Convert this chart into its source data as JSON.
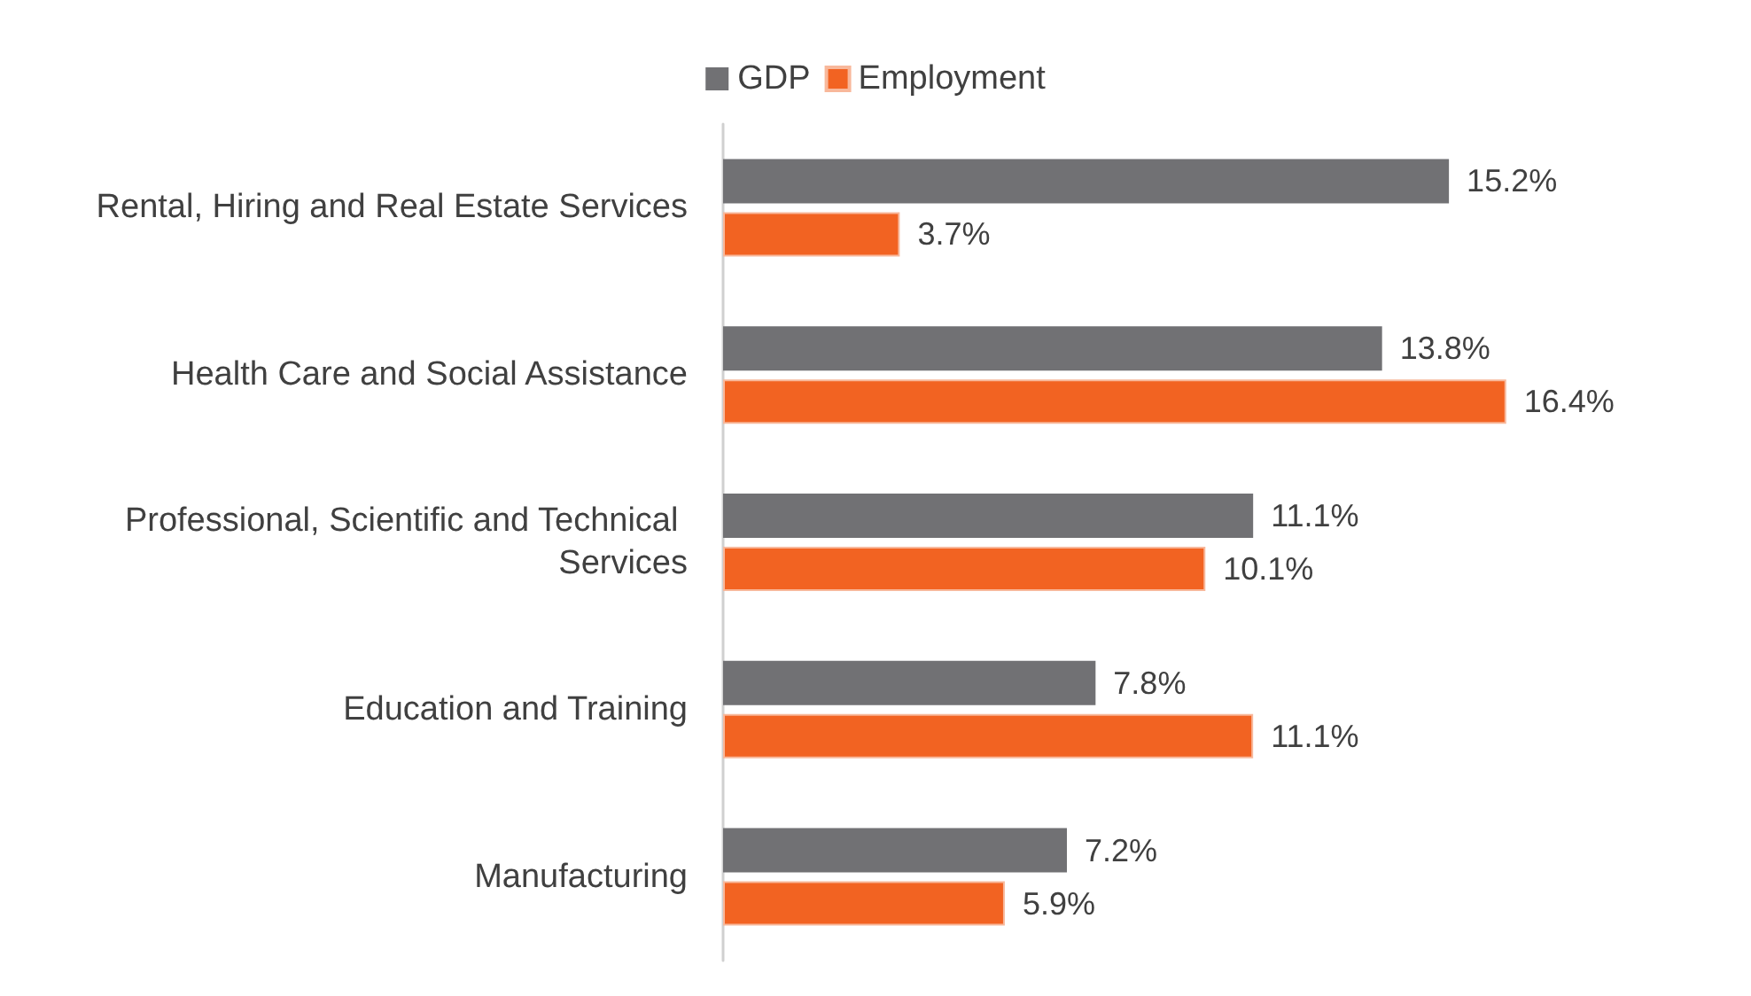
{
  "chart_data": {
    "type": "bar",
    "orientation": "horizontal",
    "legend": "top",
    "categories": [
      "Rental, Hiring and Real Estate Services",
      "Health Care and Social Assistance",
      "Professional, Scientific and Technical Services",
      "Education and Training",
      "Manufacturing"
    ],
    "series": [
      {
        "name": "GDP",
        "color": "#717174",
        "values": [
          15.2,
          13.8,
          11.1,
          7.8,
          7.2
        ],
        "value_labels": [
          "15.2%",
          "13.8%",
          "11.1%",
          "7.8%",
          "7.2%"
        ]
      },
      {
        "name": "Employment",
        "color": "#f26322",
        "values": [
          3.7,
          16.4,
          10.1,
          11.1,
          5.9
        ],
        "value_labels": [
          "3.7%",
          "16.4%",
          "10.1%",
          "11.1%",
          "5.9%"
        ]
      }
    ]
  }
}
